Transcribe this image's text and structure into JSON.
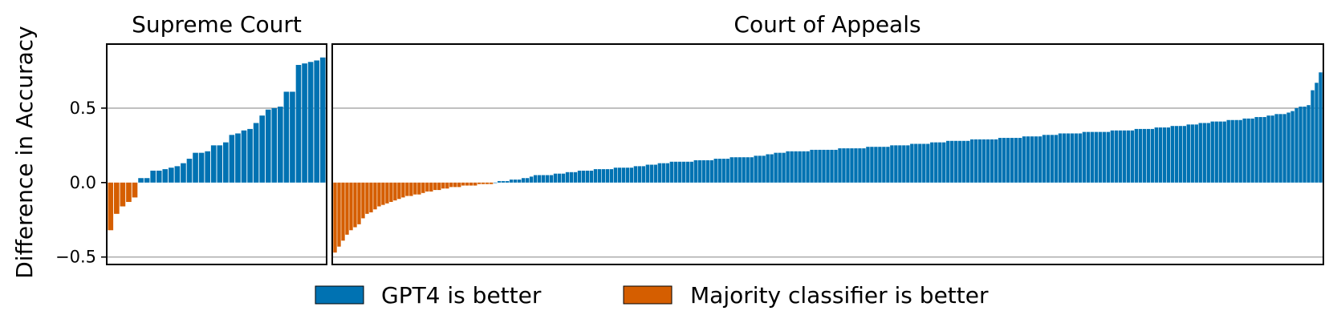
{
  "chart_data": {
    "type": "bar",
    "ylabel": "Difference in Accuracy",
    "ylim": [
      -0.55,
      0.93
    ],
    "yticks": [
      {
        "value": 0.5,
        "label": "0.5"
      },
      {
        "value": 0.0,
        "label": "0.0"
      },
      {
        "value": -0.5,
        "label": "−0.5"
      }
    ],
    "gridlines": [
      -0.5,
      0.5
    ],
    "colors": {
      "positive": "#0072B2",
      "negative": "#D55E00"
    },
    "legend": {
      "placement": "bottom-center",
      "entries": [
        {
          "label": "GPT4 is better",
          "color": "#0072B2"
        },
        {
          "label": "Majority classifier is better",
          "color": "#D55E00"
        }
      ]
    },
    "panels": [
      {
        "title": "Supreme Court",
        "values": [
          -0.32,
          -0.21,
          -0.16,
          -0.13,
          -0.1,
          0.03,
          0.03,
          0.08,
          0.08,
          0.09,
          0.1,
          0.11,
          0.13,
          0.16,
          0.2,
          0.2,
          0.21,
          0.25,
          0.25,
          0.27,
          0.32,
          0.33,
          0.35,
          0.36,
          0.4,
          0.45,
          0.49,
          0.5,
          0.51,
          0.61,
          0.61,
          0.79,
          0.8,
          0.81,
          0.82,
          0.84
        ]
      },
      {
        "title": "Court of Appeals",
        "values": [
          -0.47,
          -0.43,
          -0.39,
          -0.35,
          -0.32,
          -0.3,
          -0.28,
          -0.24,
          -0.21,
          -0.2,
          -0.18,
          -0.16,
          -0.15,
          -0.14,
          -0.13,
          -0.12,
          -0.11,
          -0.1,
          -0.09,
          -0.09,
          -0.08,
          -0.08,
          -0.07,
          -0.06,
          -0.06,
          -0.05,
          -0.05,
          -0.04,
          -0.04,
          -0.03,
          -0.03,
          -0.03,
          -0.02,
          -0.02,
          -0.02,
          -0.02,
          -0.01,
          -0.01,
          -0.01,
          -0.01,
          0.0,
          0.01,
          0.01,
          0.01,
          0.02,
          0.02,
          0.02,
          0.03,
          0.03,
          0.04,
          0.05,
          0.05,
          0.05,
          0.05,
          0.05,
          0.06,
          0.06,
          0.06,
          0.07,
          0.07,
          0.07,
          0.08,
          0.08,
          0.08,
          0.08,
          0.09,
          0.09,
          0.09,
          0.09,
          0.09,
          0.1,
          0.1,
          0.1,
          0.1,
          0.1,
          0.11,
          0.11,
          0.11,
          0.12,
          0.12,
          0.12,
          0.13,
          0.13,
          0.13,
          0.14,
          0.14,
          0.14,
          0.14,
          0.14,
          0.14,
          0.15,
          0.15,
          0.15,
          0.15,
          0.15,
          0.16,
          0.16,
          0.16,
          0.16,
          0.17,
          0.17,
          0.17,
          0.17,
          0.17,
          0.17,
          0.18,
          0.18,
          0.18,
          0.19,
          0.19,
          0.2,
          0.2,
          0.2,
          0.21,
          0.21,
          0.21,
          0.21,
          0.21,
          0.21,
          0.22,
          0.22,
          0.22,
          0.22,
          0.22,
          0.22,
          0.22,
          0.23,
          0.23,
          0.23,
          0.23,
          0.23,
          0.23,
          0.23,
          0.24,
          0.24,
          0.24,
          0.24,
          0.24,
          0.24,
          0.25,
          0.25,
          0.25,
          0.25,
          0.25,
          0.26,
          0.26,
          0.26,
          0.26,
          0.26,
          0.27,
          0.27,
          0.27,
          0.27,
          0.28,
          0.28,
          0.28,
          0.28,
          0.28,
          0.28,
          0.29,
          0.29,
          0.29,
          0.29,
          0.29,
          0.29,
          0.29,
          0.3,
          0.3,
          0.3,
          0.3,
          0.3,
          0.3,
          0.31,
          0.31,
          0.31,
          0.31,
          0.31,
          0.32,
          0.32,
          0.32,
          0.32,
          0.33,
          0.33,
          0.33,
          0.33,
          0.33,
          0.33,
          0.34,
          0.34,
          0.34,
          0.34,
          0.34,
          0.34,
          0.34,
          0.35,
          0.35,
          0.35,
          0.35,
          0.35,
          0.35,
          0.36,
          0.36,
          0.36,
          0.36,
          0.36,
          0.37,
          0.37,
          0.37,
          0.37,
          0.38,
          0.38,
          0.38,
          0.38,
          0.39,
          0.39,
          0.39,
          0.4,
          0.4,
          0.4,
          0.41,
          0.41,
          0.41,
          0.41,
          0.42,
          0.42,
          0.42,
          0.42,
          0.43,
          0.43,
          0.43,
          0.44,
          0.44,
          0.44,
          0.45,
          0.45,
          0.46,
          0.46,
          0.46,
          0.47,
          0.48,
          0.5,
          0.51,
          0.51,
          0.52,
          0.62,
          0.67,
          0.74
        ]
      }
    ]
  }
}
